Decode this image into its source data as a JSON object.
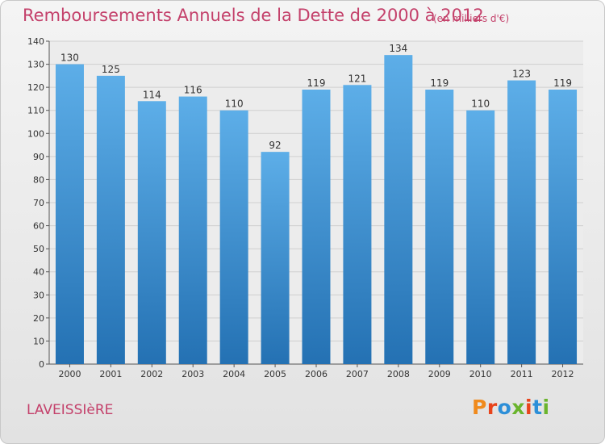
{
  "header": {
    "title": "Remboursements Annuels de la Dette de 2000 à 2012",
    "subtitle": "(en milliers d'€)"
  },
  "footer": {
    "commune": "LAVEISSIèRE",
    "logo": "Proxiti",
    "logo_colors": [
      "#f08a1c",
      "#e8441c",
      "#2d8fd8",
      "#6ab42d",
      "#e8441c",
      "#2d8fd8",
      "#6ab42d"
    ]
  },
  "colors": {
    "bar_light": "#5daee8",
    "bar_dark": "#2471b3",
    "title": "#c4416b",
    "grid": "#cfcfcf"
  },
  "chart_data": {
    "type": "bar",
    "title": "Remboursements Annuels de la Dette de 2000 à 2012",
    "categories": [
      "2000",
      "2001",
      "2002",
      "2003",
      "2004",
      "2005",
      "2006",
      "2007",
      "2008",
      "2009",
      "2010",
      "2011",
      "2012"
    ],
    "values": [
      130,
      125,
      114,
      116,
      110,
      92,
      119,
      121,
      134,
      119,
      110,
      123,
      119
    ],
    "ylim": [
      0,
      140
    ],
    "yticks": [
      0,
      10,
      20,
      30,
      40,
      50,
      60,
      70,
      80,
      90,
      100,
      110,
      120,
      130,
      140
    ],
    "grid": true,
    "xlabel": "",
    "ylabel": ""
  }
}
